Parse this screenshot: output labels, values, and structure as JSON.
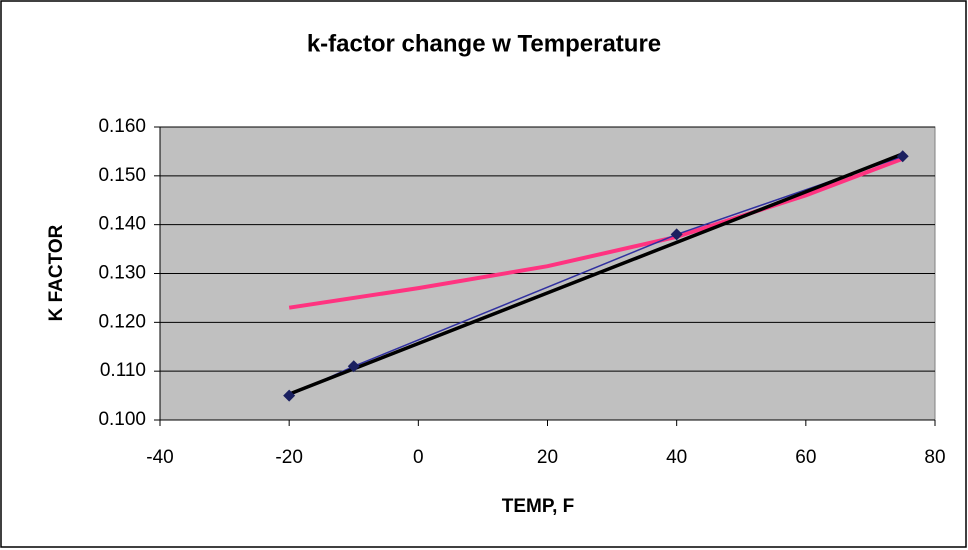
{
  "chart_data": {
    "type": "line",
    "title": "k-factor change w Temperature",
    "x_label": "TEMP, F",
    "y_label": "K FACTOR",
    "xlim": [
      -40,
      80
    ],
    "xticks": [
      -40,
      -20,
      0,
      20,
      40,
      60,
      80
    ],
    "ylim": [
      0.1,
      0.16
    ],
    "yticks": [
      {
        "value": 0.1,
        "label": "0.100"
      },
      {
        "value": 0.11,
        "label": "0.110"
      },
      {
        "value": 0.12,
        "label": "0.120"
      },
      {
        "value": 0.13,
        "label": "0.130"
      },
      {
        "value": 0.14,
        "label": "0.140"
      },
      {
        "value": 0.15,
        "label": "0.150"
      },
      {
        "value": 0.16,
        "label": "0.160"
      }
    ],
    "grid": true,
    "plot_background": "#c0c0c0",
    "series": [
      {
        "color": "#ff3380",
        "x": [
          -20,
          0,
          20,
          40,
          60,
          75
        ],
        "values": [
          0.123,
          0.127,
          0.1315,
          0.1375,
          0.146,
          0.1535
        ],
        "marker": false,
        "width": 4
      },
      {
        "color": "#3030a0",
        "x": [
          -20,
          -10,
          40,
          75
        ],
        "values": [
          0.105,
          0.111,
          0.138,
          0.154
        ],
        "marker": true,
        "width": 1.5
      },
      {
        "color": "#000000",
        "x": [
          -20,
          75
        ],
        "values": [
          0.1053,
          0.1545
        ],
        "marker": false,
        "width": 3.5
      }
    ]
  }
}
